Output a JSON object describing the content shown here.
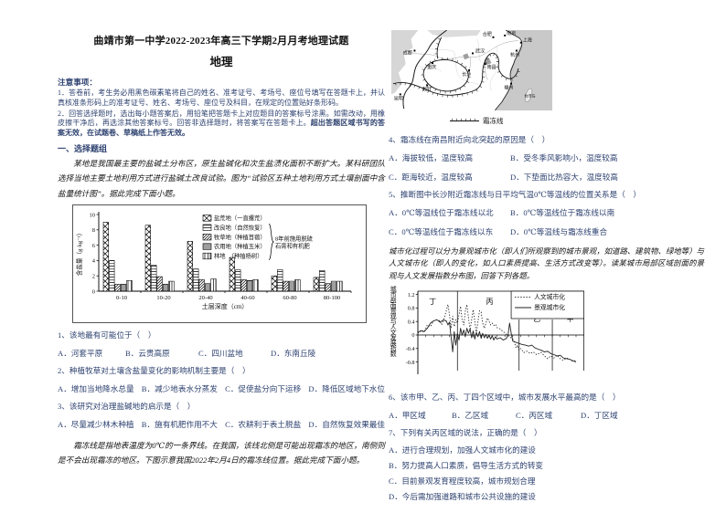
{
  "header": {
    "title": "曲靖市第一中学2022-2023年高三下学期2月月考地理试题",
    "subject": "地理"
  },
  "notice": {
    "heading": "注意事项：",
    "item1": "1．答卷前，考生务必用黑色碳素笔将自己的姓名、准考证号、考场号、座位号填写在答题卡上，并认真核准条形码上的准考证号、姓名、考场号、座位号及科目，在规定的位置贴好条形码。",
    "item2_normal": "2．回答选择题时，选出每小题答案后，用铅笔把答题卡上对应题目的答案标号涂黑。如需改动，用橡皮擦干净后，再选涂其他答案标号。回答非选择题时，将答案写在答题卡上。",
    "item2_bold": "超出答题区域书写的答案无效，在试题卷、草稿纸上作答无效。"
  },
  "section1": "一、选择题组",
  "stimulus1": "某地是我国最主要的盐碱土分布区，原生盐碱化和次生盐渍化面积不断扩大。某科研团队选择当地主要土地利用方式进行盐碱土改良试验。图为“试验区五种土地利用方式土壤剖面中含盐量统计图”。据此完成下面小题。",
  "stimulus2": "霜冻线是指地表温度为0℃的一条界线。在我国，该线北侧是可能出现霜冻的地区，南侧则是不会出现霜冻的地区。下图示意我国2022年2月4日的霜冻线位置。据此完成下面小题。",
  "stimulus3": "城市化过程可以分为景观城市化（即人们所观察到的城市景观，如道路、建筑物、绿地等）与人文城市化（即人的变化，如人口素质提高、生活方式改变等）。读某城市局部区域剖面的景观与人文发展指数分布图，回答下列各题。",
  "map": {
    "legend": "霜冻线",
    "cities": [
      {
        "name": "成都",
        "dot": [
          26,
          23
        ],
        "label": [
          13,
          27
        ]
      },
      {
        "name": "重庆",
        "dot": [
          46,
          37
        ],
        "label": [
          40,
          43
        ]
      },
      {
        "name": "贵阳",
        "dot": [
          40,
          62
        ],
        "label": [
          34,
          68
        ]
      },
      {
        "name": "昆明",
        "dot": [
          10,
          72
        ],
        "label": [
          3,
          78
        ]
      },
      {
        "name": "武汉",
        "dot": [
          91,
          26
        ],
        "label": [
          94,
          25
        ]
      },
      {
        "name": "长沙",
        "dot": [
          87,
          45
        ],
        "label": [
          79,
          51
        ]
      },
      {
        "name": "南昌",
        "dot": [
          105,
          38
        ],
        "label": [
          107,
          43
        ]
      },
      {
        "name": "合肥",
        "dot": [
          114,
          8
        ],
        "label": [
          102,
          6
        ]
      },
      {
        "name": "南京",
        "dot": [
          127,
          6
        ],
        "label": [
          129,
          5
        ]
      },
      {
        "name": "上海",
        "dot": [
          145,
          14
        ],
        "label": [
          147,
          13
        ]
      },
      {
        "name": "杭州",
        "dot": [
          140,
          23
        ],
        "label": [
          133,
          29
        ]
      },
      {
        "name": "福州",
        "dot": [
          134,
          60
        ],
        "label": [
          126,
          66
        ]
      },
      {
        "name": "台湾岛",
        "nodot": true,
        "label": [
          148.5,
          75
        ],
        "small": true
      }
    ]
  },
  "questions": [
    {
      "stem": "1、该地最有可能位于（　）",
      "options": [
        "A．河套平原",
        "B．云贵高原",
        "C．四川盆地",
        "D．东南丘陵"
      ]
    },
    {
      "stem": "2、种植牧草对土壤含盐量变化的影响机制主要是（　）",
      "options": [
        "A．增加当地降水总量",
        "B．减少地表水分蒸发",
        "C．促使盐分向下运移",
        "D．降低区域地下水位"
      ]
    },
    {
      "stem": "3、该研究对治理盐碱地的启示是（　）",
      "options": [
        "A．尽量减少林木种植",
        "B．施有机肥作用不大",
        "C．农耕利于表土脱盐",
        "D．自然恢复效果最佳"
      ]
    },
    {
      "stem": "4、霜冻线在南昌附近向北突起的原因是（　）",
      "options": [
        "A．海拔较低，温度较高",
        "B．受冬季风影响小，温度较高",
        "C．距海较近，温度较高",
        "D．下垫面比热容大，温度较高"
      ]
    },
    {
      "stem": "5、推断图中长沙附近霜冻线与日平均气温0℃等温线的位置关系是（　）",
      "options": [
        "A．0℃等温线位于霜冻线以北",
        "B．0℃等温线位于霜冻线以南",
        "C．0℃等温线位于霜冻线以东",
        "D．0℃等温线与霜冻线重合"
      ]
    },
    {
      "stem": "6、该市甲、乙、丙、丁四个区域中，城市发展水平最高的是（　）",
      "options": [
        "A．甲区域",
        "B．乙区域",
        "C．丙区域",
        "D．丁区域"
      ]
    },
    {
      "stem": "7、下列有关丙区域的说法，正确的是（　）",
      "options": [
        "A．进行合理规划，加强人文城市化的建设",
        "B．努力提高人口素质，倡导生活方式的转变",
        "C．目前景观发育程度较高，城市规划合理",
        "D．今后需加强道路和城市公共设施的建设"
      ]
    }
  ],
  "chart_data": [
    {
      "type": "bar",
      "categories": [
        "0-10",
        "10-20",
        "20-40",
        "40-60",
        "60-80",
        "80-100"
      ],
      "series": [
        {
          "name": "盐荒地（一直撂荒）",
          "pattern": "crosshatch",
          "values": [
            9.0,
            8.6,
            6.5,
            4.4,
            2.0,
            1.8
          ]
        },
        {
          "name": "改良地（自然恢复）",
          "pattern": "horizontal-dash",
          "values": [
            4.0,
            3.4,
            2.9,
            2.8,
            2.8,
            2.7
          ]
        },
        {
          "name": "牧草地（种植苜蓿）",
          "pattern": "diagonal-fine",
          "values": [
            0.9,
            1.9,
            1.5,
            1.5,
            1.3,
            1.0
          ]
        },
        {
          "name": "农用地（种植玉米）",
          "pattern": "horizontal",
          "values": [
            0.9,
            0.9,
            1.0,
            1.4,
            1.3,
            1.3
          ]
        },
        {
          "name": "林地　（种植杨树）",
          "pattern": "vertical",
          "values": [
            1.4,
            1.3,
            1.6,
            1.5,
            1.5,
            1.3
          ]
        }
      ],
      "xlabel": "土层深度（cm）",
      "ylabel": "含盐量（g·kg⁻¹）",
      "ylim": [
        0,
        10
      ],
      "yticks": [
        0,
        2,
        4,
        6,
        8,
        10
      ],
      "legend_note_lines": [
        "8年前施用脱硫",
        "石膏和有机肥"
      ],
      "legend_position": "top-right"
    },
    {
      "type": "line",
      "ylabel_vertical": "城市剖面景观与人文发展指数",
      "ylim": [
        -1.0,
        1.3
      ],
      "yticks": [
        1.2,
        0.8,
        0.4,
        0,
        -0.4,
        -0.8
      ],
      "regions": [
        {
          "label": "丁",
          "from": 0,
          "to": 25,
          "label_at": [
            7,
            0.92
          ]
        },
        {
          "label": "丙",
          "from": 25,
          "to": 64,
          "label_at": [
            43,
            0.92
          ]
        },
        {
          "label": "乙",
          "from": 64,
          "to": 85,
          "label_at": [
            73,
            0.4
          ]
        },
        {
          "label": "甲",
          "from": 85,
          "to": 105,
          "label_at": [
            94,
            0.4
          ]
        }
      ],
      "series": [
        {
          "name": "人文城市化",
          "style": "dotted",
          "points": [
            [
              0,
              0.05
            ],
            [
              2,
              0.15
            ],
            [
              4,
              0.1
            ],
            [
              6,
              0.3
            ],
            [
              8,
              0.25
            ],
            [
              10,
              0.42
            ],
            [
              12,
              0.45
            ],
            [
              14,
              0.42
            ],
            [
              15,
              0.3
            ],
            [
              17,
              0.55
            ],
            [
              19,
              0.9
            ],
            [
              20,
              0.6
            ],
            [
              21,
              0.2
            ],
            [
              22,
              0.55
            ],
            [
              23,
              0.25
            ],
            [
              24,
              0.45
            ],
            [
              25,
              0.35
            ],
            [
              26,
              0.6
            ],
            [
              27,
              0.85
            ],
            [
              28,
              0.45
            ],
            [
              29,
              0.3
            ],
            [
              30,
              0.7
            ],
            [
              31,
              0.9
            ],
            [
              32,
              0.5
            ],
            [
              33,
              0.15
            ],
            [
              34,
              0.45
            ],
            [
              35,
              0.75
            ],
            [
              36,
              0.4
            ],
            [
              37,
              0.05
            ],
            [
              38,
              0.4
            ],
            [
              39,
              0.72
            ],
            [
              40,
              0.68
            ],
            [
              41,
              0.35
            ],
            [
              42,
              0.2
            ],
            [
              43,
              0.35
            ],
            [
              44,
              0.5
            ],
            [
              45,
              0.42
            ],
            [
              46,
              0.3
            ],
            [
              47,
              0.35
            ],
            [
              48,
              0.28
            ],
            [
              49,
              0.32
            ],
            [
              50,
              0.22
            ],
            [
              52,
              0.18
            ],
            [
              54,
              0.1
            ],
            [
              56,
              0.02
            ],
            [
              58,
              -0.05
            ],
            [
              60,
              -0.12
            ],
            [
              61,
              -0.2
            ],
            [
              62,
              -0.38
            ],
            [
              63,
              -0.3
            ],
            [
              64,
              -0.45
            ],
            [
              65,
              -0.4
            ],
            [
              67,
              -0.52
            ],
            [
              69,
              -0.48
            ],
            [
              71,
              -0.55
            ],
            [
              73,
              -0.5
            ],
            [
              75,
              -0.58
            ],
            [
              78,
              -0.52
            ],
            [
              80,
              -0.62
            ],
            [
              82,
              -0.7
            ],
            [
              84,
              -0.62
            ],
            [
              86,
              -0.68
            ],
            [
              88,
              -0.6
            ],
            [
              90,
              -0.7
            ],
            [
              92,
              -0.75
            ],
            [
              94,
              -0.68
            ],
            [
              96,
              -0.72
            ],
            [
              98,
              -0.78
            ],
            [
              100,
              -0.75
            ]
          ]
        },
        {
          "name": "景观城市化",
          "style": "solid",
          "points": [
            [
              0,
              0.08
            ],
            [
              2,
              0.12
            ],
            [
              4,
              0.1
            ],
            [
              6,
              0.2
            ],
            [
              8,
              0.35
            ],
            [
              10,
              0.42
            ],
            [
              12,
              0.45
            ],
            [
              14,
              0.38
            ],
            [
              16,
              0.44
            ],
            [
              18,
              0.42
            ],
            [
              19,
              0.3
            ],
            [
              20,
              0.38
            ],
            [
              21,
              -0.05
            ],
            [
              22,
              -0.5
            ],
            [
              23,
              0.1
            ],
            [
              24,
              -0.3
            ],
            [
              25,
              0.05
            ],
            [
              26,
              -0.15
            ],
            [
              27,
              0.2
            ],
            [
              28,
              0.0
            ],
            [
              29,
              0.15
            ],
            [
              30,
              -0.05
            ],
            [
              31,
              0.2
            ],
            [
              32,
              0.05
            ],
            [
              33,
              0.18
            ],
            [
              34,
              -0.08
            ],
            [
              35,
              0.12
            ],
            [
              36,
              -0.12
            ],
            [
              37,
              0.08
            ],
            [
              38,
              -0.05
            ],
            [
              39,
              0.1
            ],
            [
              40,
              -0.1
            ],
            [
              41,
              0.05
            ],
            [
              42,
              -0.08
            ],
            [
              43,
              0.02
            ],
            [
              44,
              -0.1
            ],
            [
              45,
              0.0
            ],
            [
              46,
              -0.12
            ],
            [
              47,
              -0.02
            ],
            [
              48,
              -0.15
            ],
            [
              49,
              -0.05
            ],
            [
              50,
              -0.12
            ],
            [
              52,
              -0.08
            ],
            [
              54,
              -0.15
            ],
            [
              56,
              -0.1
            ],
            [
              57,
              0.0
            ],
            [
              58,
              0.35
            ],
            [
              59,
              0.05
            ],
            [
              60,
              -0.18
            ],
            [
              62,
              -0.22
            ],
            [
              64,
              -0.25
            ],
            [
              66,
              -0.28
            ],
            [
              68,
              -0.3
            ],
            [
              70,
              -0.33
            ],
            [
              72,
              -0.3
            ],
            [
              74,
              -0.38
            ],
            [
              76,
              -0.42
            ],
            [
              78,
              -0.45
            ],
            [
              80,
              -0.5
            ],
            [
              82,
              -0.48
            ],
            [
              84,
              -0.55
            ],
            [
              86,
              -0.58
            ],
            [
              88,
              -0.62
            ],
            [
              90,
              -0.6
            ],
            [
              92,
              -0.68
            ],
            [
              94,
              -0.7
            ],
            [
              96,
              -0.72
            ],
            [
              98,
              -0.76
            ],
            [
              100,
              -0.8
            ]
          ]
        }
      ],
      "legend_position": "top-right"
    }
  ]
}
